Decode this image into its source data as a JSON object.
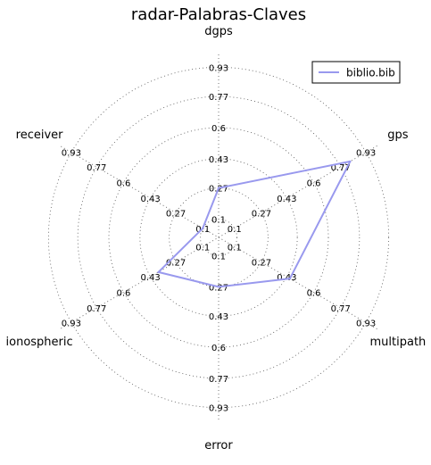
{
  "chart_data": {
    "type": "radar",
    "title": "radar-Palabras-Claves",
    "axes": [
      "dgps",
      "gps",
      "multipath",
      "error",
      "ionospheric",
      "receiver"
    ],
    "tick_labels": [
      "0.1",
      "0.27",
      "0.43",
      "0.6",
      "0.77",
      "0.93"
    ],
    "rmax": 1.0,
    "grid": true,
    "legend_position": "top-right",
    "series": [
      {
        "name": "biblio.bib",
        "color": "#9999ee",
        "values": [
          0.27,
          0.83,
          0.45,
          0.27,
          0.38,
          0.1
        ]
      }
    ]
  }
}
